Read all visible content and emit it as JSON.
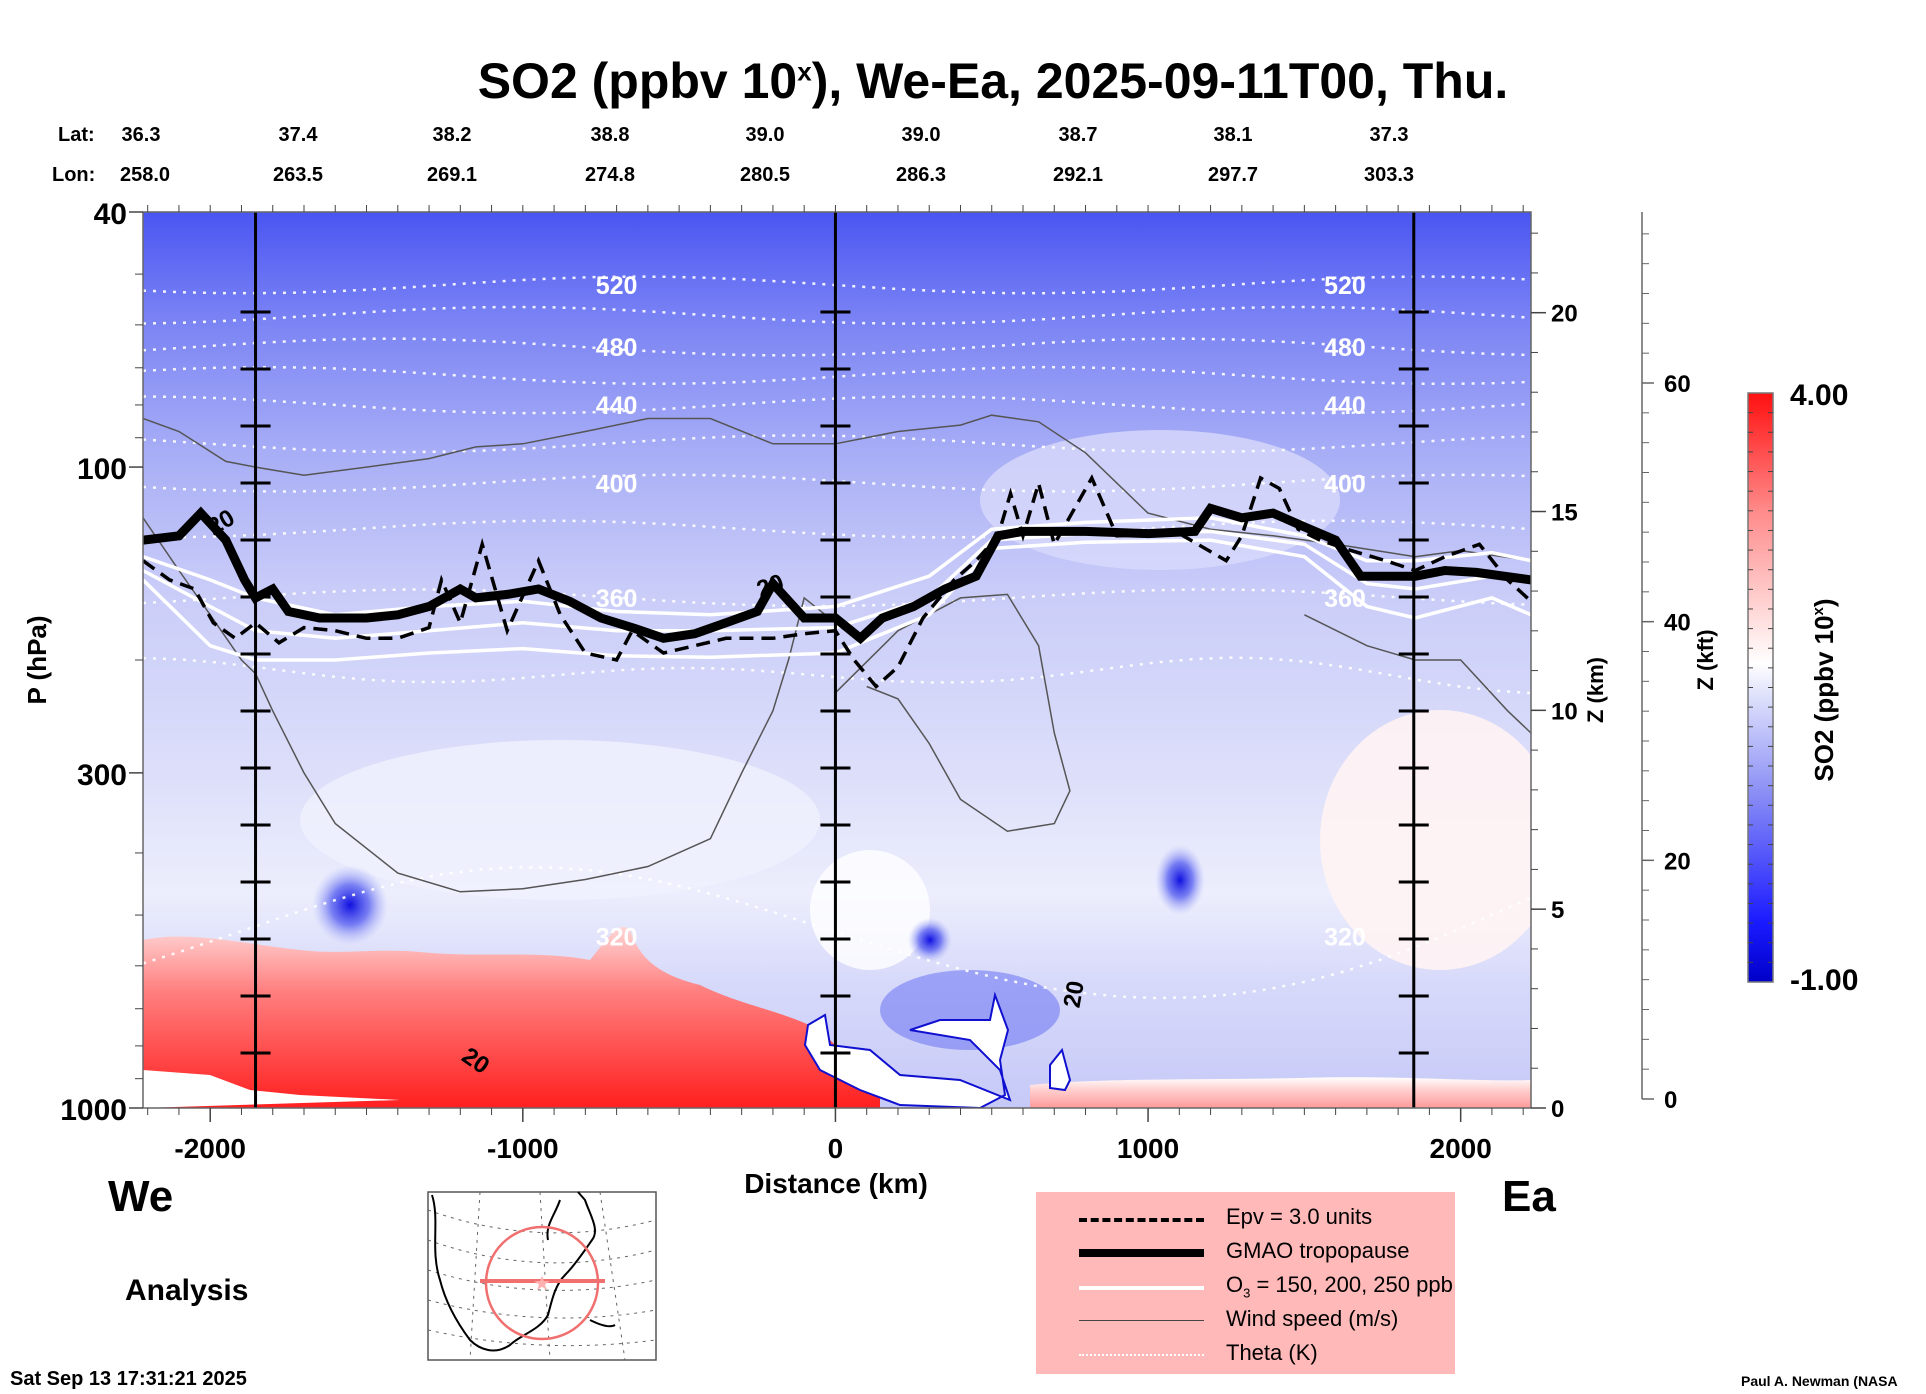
{
  "title": {
    "main": "SO2 (ppbv 10",
    "sup": "x",
    "rest": "), We-Ea, 2025-09-11T00, Thu."
  },
  "latlon": {
    "lat_label": "Lat:",
    "lon_label": "Lon:",
    "points": [
      {
        "lat": "36.3",
        "lon": "258.0"
      },
      {
        "lat": "37.4",
        "lon": "263.5"
      },
      {
        "lat": "38.2",
        "lon": "269.1"
      },
      {
        "lat": "38.8",
        "lon": "274.8"
      },
      {
        "lat": "39.0",
        "lon": "280.5"
      },
      {
        "lat": "39.0",
        "lon": "286.3"
      },
      {
        "lat": "38.7",
        "lon": "292.1"
      },
      {
        "lat": "38.1",
        "lon": "297.7"
      },
      {
        "lat": "37.3",
        "lon": "303.3"
      }
    ]
  },
  "labels": {
    "west": "We",
    "east": "Ea",
    "analysis": "Analysis",
    "timestamp": "Sat Sep 13 17:31:21 2025",
    "credit": "Paul A. Newman (NASA"
  },
  "legend": {
    "items": [
      {
        "name": "epv",
        "label": "Epv = 3.0 units"
      },
      {
        "name": "tropopause",
        "label": "GMAO tropopause"
      },
      {
        "name": "ozone",
        "label_pre": "O",
        "label_sub": "3",
        "label_post": " = 150, 200, 250 ppb"
      },
      {
        "name": "wind",
        "label": "Wind speed (m/s)"
      },
      {
        "name": "theta",
        "label": "Theta (K)"
      }
    ]
  },
  "colorbar": {
    "label": "SO2 (ppbv 10",
    "label_sup": "x",
    "label_end": ")",
    "max_label": "4.00",
    "min_label": "-1.00",
    "range": [
      -1.0,
      4.0
    ],
    "low_color": "#0000c8",
    "mid_color": "#ffffff",
    "high_color": "#ff0000"
  },
  "chart_data": {
    "type": "heatmap",
    "title": "SO2 (ppbv 10^x), We-Ea, 2025-09-11T00, Thu.",
    "xlabel": "Distance (km)",
    "ylabel": "P (hPa)",
    "y2label": "Z (km)",
    "y3label": "Z (kft)",
    "xlim": [
      -2215,
      2225
    ],
    "ylim_hpa": [
      1000,
      40
    ],
    "y_scale": "log",
    "x_ticks": [
      -2000,
      -1000,
      0,
      1000,
      2000
    ],
    "x_tick_labels": [
      "-2000",
      "-1000",
      "0",
      "1000",
      "2000"
    ],
    "y_ticks": [
      1000,
      300,
      100,
      40
    ],
    "y_tick_labels": [
      "1000",
      "300",
      "100",
      "40"
    ],
    "z_km_ticks": [
      0,
      5,
      10,
      15,
      20
    ],
    "z_kft_ticks": [
      0,
      20,
      40,
      60
    ],
    "vertical_markers_km": [
      -1855,
      0,
      1850
    ],
    "theta_levels": [
      {
        "value": 520,
        "label": "520",
        "p": 52
      },
      {
        "value": 500,
        "label": "",
        "p": 58
      },
      {
        "value": 480,
        "label": "480",
        "p": 65
      },
      {
        "value": 460,
        "label": "",
        "p": 72
      },
      {
        "value": 440,
        "label": "440",
        "p": 80
      },
      {
        "value": 420,
        "label": "",
        "p": 92
      },
      {
        "value": 400,
        "label": "400",
        "p": 106
      },
      {
        "value": 380,
        "label": "",
        "p": 125
      },
      {
        "value": 360,
        "label": "360",
        "p": 160
      },
      {
        "value": 340,
        "label": "",
        "p": 210
      },
      {
        "value": 320,
        "label": "320",
        "p": 540
      }
    ],
    "tropopause_hpa": [
      [
        -2215,
        130
      ],
      [
        -2100,
        128
      ],
      [
        -2030,
        118
      ],
      [
        -1950,
        130
      ],
      [
        -1890,
        150
      ],
      [
        -1855,
        160
      ],
      [
        -1800,
        155
      ],
      [
        -1750,
        168
      ],
      [
        -1650,
        172
      ],
      [
        -1500,
        172
      ],
      [
        -1400,
        170
      ],
      [
        -1300,
        165
      ],
      [
        -1200,
        155
      ],
      [
        -1150,
        160
      ],
      [
        -1050,
        158
      ],
      [
        -950,
        155
      ],
      [
        -850,
        162
      ],
      [
        -750,
        172
      ],
      [
        -650,
        178
      ],
      [
        -550,
        185
      ],
      [
        -450,
        182
      ],
      [
        -350,
        175
      ],
      [
        -250,
        168
      ],
      [
        -200,
        152
      ],
      [
        -100,
        172
      ],
      [
        0,
        172
      ],
      [
        80,
        185
      ],
      [
        150,
        172
      ],
      [
        250,
        165
      ],
      [
        350,
        155
      ],
      [
        450,
        148
      ],
      [
        520,
        128
      ],
      [
        600,
        126
      ],
      [
        800,
        126
      ],
      [
        1000,
        127
      ],
      [
        1150,
        126
      ],
      [
        1200,
        116
      ],
      [
        1300,
        120
      ],
      [
        1400,
        118
      ],
      [
        1500,
        124
      ],
      [
        1600,
        130
      ],
      [
        1680,
        148
      ],
      [
        1855,
        148
      ],
      [
        1950,
        145
      ],
      [
        2050,
        146
      ],
      [
        2225,
        150
      ]
    ],
    "epv_hpa": [
      [
        -2215,
        140
      ],
      [
        -2130,
        150
      ],
      [
        -2050,
        155
      ],
      [
        -1990,
        175
      ],
      [
        -1920,
        185
      ],
      [
        -1855,
        175
      ],
      [
        -1780,
        188
      ],
      [
        -1700,
        178
      ],
      [
        -1600,
        180
      ],
      [
        -1500,
        185
      ],
      [
        -1400,
        185
      ],
      [
        -1300,
        178
      ],
      [
        -1260,
        150
      ],
      [
        -1200,
        175
      ],
      [
        -1130,
        132
      ],
      [
        -1050,
        180
      ],
      [
        -950,
        140
      ],
      [
        -880,
        170
      ],
      [
        -800,
        195
      ],
      [
        -700,
        200
      ],
      [
        -650,
        180
      ],
      [
        -550,
        195
      ],
      [
        -450,
        190
      ],
      [
        -350,
        185
      ],
      [
        -300,
        185
      ],
      [
        -200,
        185
      ],
      [
        -100,
        182
      ],
      [
        0,
        180
      ],
      [
        60,
        200
      ],
      [
        130,
        220
      ],
      [
        200,
        205
      ],
      [
        280,
        172
      ],
      [
        380,
        150
      ],
      [
        450,
        140
      ],
      [
        520,
        128
      ],
      [
        560,
        110
      ],
      [
        600,
        128
      ],
      [
        650,
        106
      ],
      [
        700,
        132
      ],
      [
        820,
        104
      ],
      [
        900,
        128
      ],
      [
        1100,
        127
      ],
      [
        1250,
        140
      ],
      [
        1300,
        128
      ],
      [
        1360,
        104
      ],
      [
        1420,
        108
      ],
      [
        1480,
        125
      ],
      [
        1550,
        130
      ],
      [
        1650,
        135
      ],
      [
        1760,
        140
      ],
      [
        1855,
        145
      ],
      [
        1950,
        138
      ],
      [
        2060,
        132
      ],
      [
        2150,
        150
      ],
      [
        2225,
        162
      ]
    ],
    "ozone_hpa": [
      {
        "ppb": 150,
        "points": [
          [
            -2215,
            138
          ],
          [
            -2000,
            150
          ],
          [
            -1855,
            160
          ],
          [
            -1600,
            170
          ],
          [
            -1300,
            165
          ],
          [
            -1000,
            162
          ],
          [
            -700,
            168
          ],
          [
            -400,
            170
          ],
          [
            0,
            165
          ],
          [
            300,
            148
          ],
          [
            500,
            125
          ],
          [
            800,
            122
          ],
          [
            1200,
            120
          ],
          [
            1500,
            128
          ],
          [
            1700,
            140
          ],
          [
            1855,
            140
          ],
          [
            2100,
            136
          ],
          [
            2225,
            140
          ]
        ]
      },
      {
        "ppb": 200,
        "points": [
          [
            -2215,
            145
          ],
          [
            -2000,
            165
          ],
          [
            -1855,
            180
          ],
          [
            -1600,
            185
          ],
          [
            -1300,
            180
          ],
          [
            -1000,
            175
          ],
          [
            -700,
            180
          ],
          [
            -400,
            180
          ],
          [
            0,
            178
          ],
          [
            300,
            160
          ],
          [
            500,
            130
          ],
          [
            800,
            127
          ],
          [
            1200,
            126
          ],
          [
            1500,
            132
          ],
          [
            1700,
            152
          ],
          [
            1855,
            155
          ],
          [
            2100,
            148
          ],
          [
            2225,
            150
          ]
        ]
      },
      {
        "ppb": 250,
        "points": [
          [
            -2215,
            150
          ],
          [
            -2000,
            190
          ],
          [
            -1855,
            200
          ],
          [
            -1600,
            200
          ],
          [
            -1300,
            195
          ],
          [
            -1000,
            192
          ],
          [
            -700,
            197
          ],
          [
            -400,
            198
          ],
          [
            0,
            195
          ],
          [
            300,
            170
          ],
          [
            500,
            134
          ],
          [
            800,
            131
          ],
          [
            1200,
            130
          ],
          [
            1500,
            138
          ],
          [
            1700,
            165
          ],
          [
            1855,
            172
          ],
          [
            2100,
            160
          ],
          [
            2225,
            170
          ]
        ]
      }
    ],
    "wind_contour_label": "20",
    "wind_speed_contours_hpa": [
      [
        [
          -2215,
          84
        ],
        [
          -2100,
          88
        ],
        [
          -1950,
          98
        ],
        [
          -1855,
          100
        ],
        [
          -1700,
          103
        ],
        [
          -1500,
          100
        ],
        [
          -1300,
          97
        ],
        [
          -1150,
          93
        ],
        [
          -1000,
          92
        ],
        [
          -800,
          88
        ],
        [
          -600,
          84
        ],
        [
          -400,
          84
        ],
        [
          -200,
          92
        ],
        [
          0,
          92
        ],
        [
          200,
          88
        ],
        [
          400,
          86
        ],
        [
          500,
          83
        ],
        [
          650,
          85
        ],
        [
          800,
          95
        ],
        [
          1000,
          118
        ],
        [
          1200,
          125
        ],
        [
          1400,
          128
        ],
        [
          1600,
          132
        ],
        [
          1855,
          138
        ],
        [
          2000,
          135
        ],
        [
          2225,
          140
        ]
      ],
      [
        [
          -2215,
          120
        ],
        [
          -2100,
          145
        ],
        [
          -2000,
          170
        ],
        [
          -1900,
          200
        ],
        [
          -1855,
          210
        ],
        [
          -1800,
          240
        ],
        [
          -1700,
          300
        ],
        [
          -1600,
          360
        ],
        [
          -1400,
          430
        ],
        [
          -1200,
          460
        ],
        [
          -1000,
          455
        ],
        [
          -800,
          440
        ],
        [
          -600,
          420
        ],
        [
          -400,
          380
        ],
        [
          -300,
          300
        ],
        [
          -200,
          240
        ],
        [
          -150,
          200
        ],
        [
          -100,
          160
        ],
        [
          0,
          175
        ]
      ],
      [
        [
          0,
          225
        ],
        [
          200,
          180
        ],
        [
          400,
          160
        ],
        [
          550,
          158
        ],
        [
          650,
          190
        ],
        [
          700,
          260
        ],
        [
          750,
          320
        ],
        [
          700,
          360
        ],
        [
          550,
          370
        ],
        [
          400,
          330
        ],
        [
          300,
          270
        ],
        [
          200,
          230
        ],
        [
          100,
          220
        ]
      ],
      [
        [
          1500,
          170
        ],
        [
          1700,
          190
        ],
        [
          1855,
          200
        ],
        [
          2000,
          200
        ],
        [
          2150,
          240
        ],
        [
          2225,
          260
        ]
      ]
    ],
    "so2_regions": [
      {
        "name": "boundary-layer-red-west",
        "value": 3.2
      },
      {
        "name": "boundary-layer-red-east",
        "value": 1.2
      },
      {
        "name": "stratosphere-blue",
        "value": -0.6
      },
      {
        "name": "upper-trop-light-blue",
        "value": 0.2
      },
      {
        "name": "blue-minimum-1100km-400hPa",
        "value": -0.8
      },
      {
        "name": "blue-minimum-neg1550km-450hPa",
        "value": -0.9
      }
    ],
    "grid": false
  }
}
